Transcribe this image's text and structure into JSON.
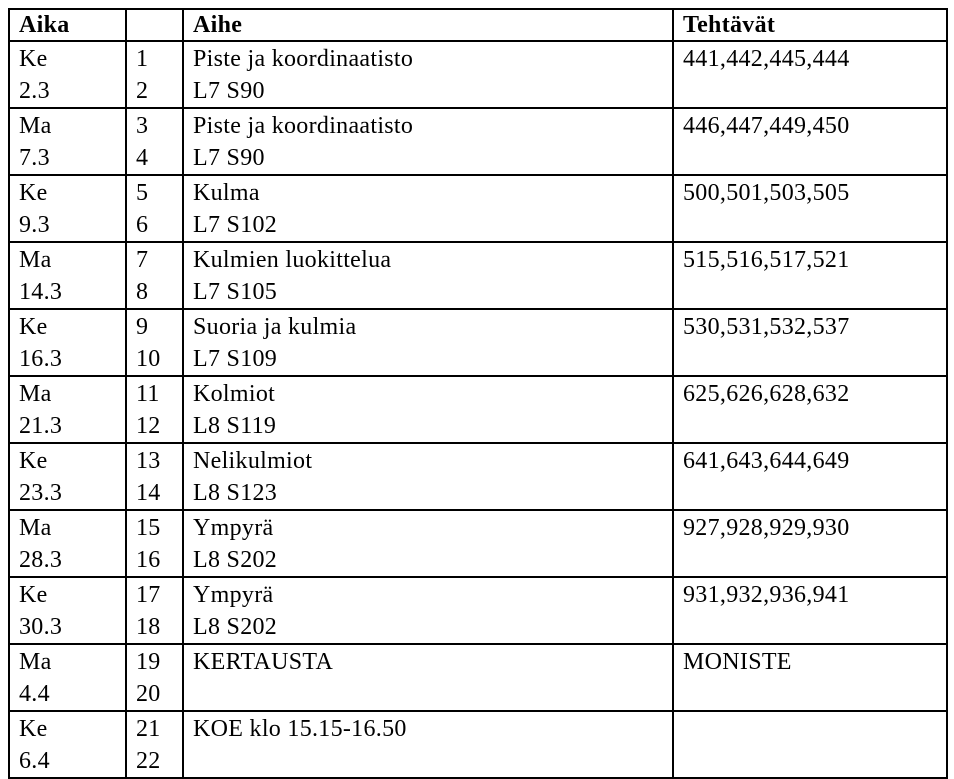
{
  "colors": {
    "background": "#ffffff",
    "text": "#000000",
    "border": "#000000"
  },
  "table": {
    "headers": {
      "aika": "Aika",
      "num": "",
      "aihe": "Aihe",
      "tehtavat": "Tehtävät"
    },
    "rows": [
      {
        "day": "Ke",
        "date": "2.3",
        "n1": "1",
        "n2": "2",
        "topic1": "Piste ja koordinaatisto",
        "topic2": "L7 S90",
        "tasks": "441,442,445,444"
      },
      {
        "day": "Ma",
        "date": "7.3",
        "n1": "3",
        "n2": "4",
        "topic1": "Piste ja koordinaatisto",
        "topic2": "L7 S90",
        "tasks": "446,447,449,450"
      },
      {
        "day": "Ke",
        "date": "9.3",
        "n1": "5",
        "n2": "6",
        "topic1": "Kulma",
        "topic2": "L7 S102",
        "tasks": "500,501,503,505"
      },
      {
        "day": "Ma",
        "date": "14.3",
        "n1": "7",
        "n2": "8",
        "topic1": "Kulmien luokittelua",
        "topic2": "L7 S105",
        "tasks": "515,516,517,521"
      },
      {
        "day": "Ke",
        "date": "16.3",
        "n1": "9",
        "n2": "10",
        "topic1": "Suoria ja kulmia",
        "topic2": "L7 S109",
        "tasks": "530,531,532,537"
      },
      {
        "day": "Ma",
        "date": "21.3",
        "n1": "11",
        "n2": "12",
        "topic1": "Kolmiot",
        "topic2": "L8 S119",
        "tasks": "625,626,628,632"
      },
      {
        "day": "Ke",
        "date": "23.3",
        "n1": "13",
        "n2": "14",
        "topic1": "Nelikulmiot",
        "topic2": "L8 S123",
        "tasks": "641,643,644,649"
      },
      {
        "day": "Ma",
        "date": "28.3",
        "n1": "15",
        "n2": "16",
        "topic1": "Ympyrä",
        "topic2": "L8 S202",
        "tasks": "927,928,929,930"
      },
      {
        "day": "Ke",
        "date": "30.3",
        "n1": "17",
        "n2": "18",
        "topic1": "Ympyrä",
        "topic2": "L8 S202",
        "tasks": "931,932,936,941"
      },
      {
        "day": "Ma",
        "date": "4.4",
        "n1": "19",
        "n2": "20",
        "topic1": "KERTAUSTA",
        "topic2": "",
        "tasks": "MONISTE"
      },
      {
        "day": "Ke",
        "date": "6.4",
        "n1": "21",
        "n2": "22",
        "topic1": "KOE klo 15.15-16.50",
        "topic2": "",
        "tasks": ""
      }
    ]
  }
}
